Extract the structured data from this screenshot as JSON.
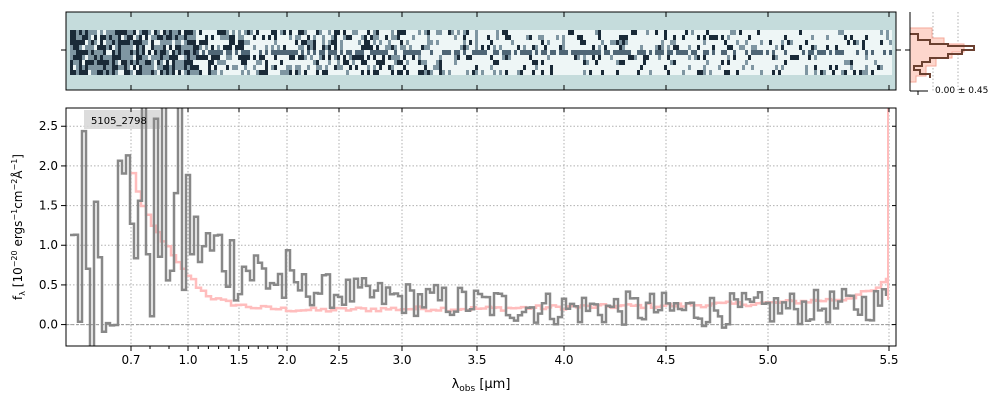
{
  "figure": {
    "object_id": "5105_2798",
    "hist_annotation": "0.00 ± 0.45",
    "xlabel": "λobs [μm]",
    "ylabel": "fλ [10⁻²⁰ ergs⁻¹cm⁻²Å⁻¹]"
  },
  "colors": {
    "background_2d": "#c5dcdc",
    "spectrum": "#888888",
    "model": "#ffbdbd",
    "hist_line": "#6b4030",
    "hist_fill": "#fdd6cc",
    "grid": "#b0b0b0"
  },
  "chart_data": {
    "type": "line",
    "title": "",
    "xlabel": "λobs [μm]",
    "ylabel": "fλ [10⁻²⁰ ergs⁻¹cm⁻²Å⁻¹]",
    "xscale": "reciprocal-ish (spectral pixel axis)",
    "xlim": [
      0.6,
      5.52
    ],
    "ylim": [
      -0.27,
      2.73
    ],
    "xticks": [
      0.7,
      1.0,
      1.5,
      2.0,
      2.5,
      3.0,
      3.5,
      4.0,
      4.5,
      5.0,
      5.5
    ],
    "xtick_labels": [
      "0.7",
      "1.0",
      "1.5",
      "2.0",
      "2.5",
      "3.0",
      "3.5",
      "4.0",
      "4.5",
      "5.0",
      "5.5"
    ],
    "yticks": [
      0.0,
      0.5,
      1.0,
      1.5,
      2.0,
      2.5
    ],
    "ytick_labels": [
      "0.0",
      "0.5",
      "1.0",
      "1.5",
      "2.0",
      "2.5"
    ],
    "grid": true,
    "series": [
      {
        "name": "",
        "style": "steps",
        "x": [
          0.65,
          0.7,
          0.75,
          0.8,
          0.85,
          0.9,
          0.95,
          1.0,
          1.1,
          1.2,
          1.3,
          1.4,
          1.5,
          1.6,
          1.7,
          1.8,
          1.9,
          2.0,
          2.2,
          2.4,
          2.6,
          2.8,
          3.0,
          3.2,
          3.4,
          3.6,
          3.8,
          4.0,
          4.2,
          4.4,
          4.6,
          4.8,
          5.0,
          5.2,
          5.4,
          5.5
        ],
        "y": [
          1.2,
          1.8,
          1.6,
          1.4,
          1.3,
          1.5,
          1.3,
          1.1,
          1.0,
          0.9,
          0.95,
          0.8,
          0.75,
          0.7,
          0.65,
          0.6,
          0.55,
          0.5,
          0.45,
          0.42,
          0.38,
          0.35,
          0.33,
          0.3,
          0.28,
          0.25,
          0.22,
          0.2,
          0.2,
          0.2,
          0.18,
          0.18,
          0.2,
          0.22,
          0.25,
          0.3
        ]
      },
      {
        "name": "",
        "style": "steps",
        "x": [
          0.7,
          0.75,
          0.8,
          0.85,
          0.9,
          0.95,
          1.0,
          1.1,
          1.2,
          1.3,
          1.5,
          1.7,
          2.0,
          2.3,
          2.6,
          3.0,
          3.5,
          4.0,
          4.5,
          5.0,
          5.3,
          5.45,
          5.5
        ],
        "y": [
          1.9,
          1.5,
          1.25,
          1.1,
          0.9,
          0.72,
          0.6,
          0.45,
          0.35,
          0.3,
          0.24,
          0.21,
          0.19,
          0.18,
          0.19,
          0.2,
          0.2,
          0.22,
          0.24,
          0.27,
          0.32,
          0.45,
          0.65
        ]
      }
    ]
  }
}
